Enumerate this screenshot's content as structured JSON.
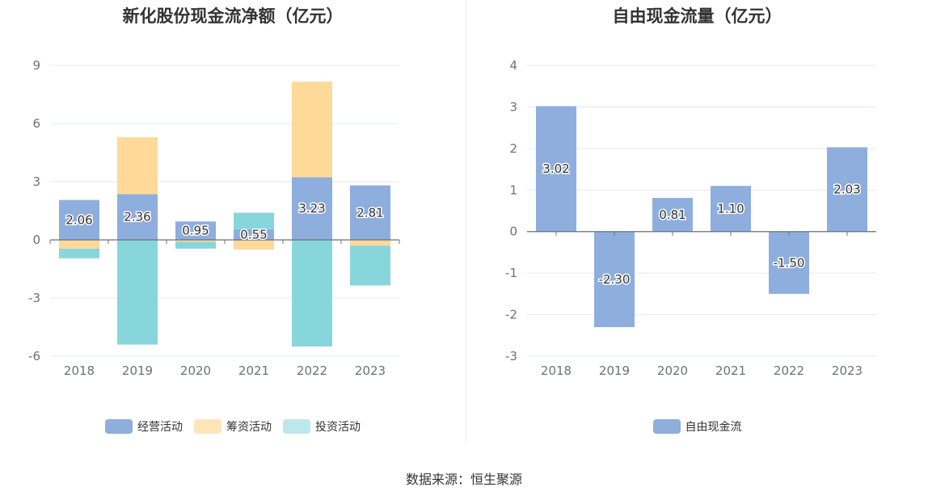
{
  "source": "数据来源：恒生聚源",
  "chart_data": [
    {
      "type": "bar",
      "stacked": true,
      "title": "新化股份现金流净额（亿元）",
      "categories": [
        "2018",
        "2019",
        "2020",
        "2021",
        "2022",
        "2023"
      ],
      "ylim": [
        -6,
        9
      ],
      "yticks": [
        -6,
        -3,
        0,
        3,
        6,
        9
      ],
      "grid": true,
      "legend_position": "bottom",
      "series": [
        {
          "name": "经营活动",
          "color": "#8eaedd",
          "values": [
            2.06,
            2.36,
            0.95,
            0.55,
            3.23,
            2.81
          ],
          "labels": [
            "2.06",
            "2.36",
            "0.95",
            "0.55",
            "3.23",
            "2.81"
          ]
        },
        {
          "name": "筹资活动",
          "color": "#ffd998",
          "values": [
            -0.45,
            2.94,
            -0.1,
            -0.5,
            4.93,
            -0.3
          ]
        },
        {
          "name": "投资活动",
          "color": "#87d6dc",
          "values": [
            -0.5,
            -5.4,
            -0.35,
            0.85,
            -5.5,
            -2.05
          ]
        }
      ]
    },
    {
      "type": "bar",
      "title": "自由现金流量（亿元）",
      "categories": [
        "2018",
        "2019",
        "2020",
        "2021",
        "2022",
        "2023"
      ],
      "ylim": [
        -3,
        4
      ],
      "yticks": [
        -3,
        -2,
        -1,
        0,
        1,
        2,
        3,
        4
      ],
      "grid": true,
      "legend_position": "bottom",
      "series": [
        {
          "name": "自由现金流",
          "color": "#8eaedd",
          "values": [
            3.02,
            -2.3,
            0.81,
            1.1,
            -1.5,
            2.03
          ],
          "labels": [
            "3.02",
            "-2.30",
            "0.81",
            "1.10",
            "-1.50",
            "2.03"
          ]
        }
      ]
    }
  ]
}
